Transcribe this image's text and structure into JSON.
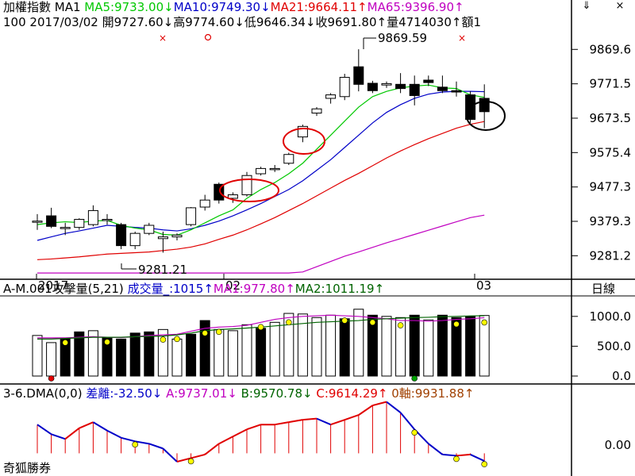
{
  "header": {
    "title": "加權指數 MA1",
    "ma5": "MA5:9733.00",
    "ma10": "MA10:9749.30",
    "ma21": "MA21:9664.11",
    "ma65": "MA65:9396.90",
    "info": "100 2017/03/02 開9727.60",
    "high": "高9774.60",
    "low": "低9646.34",
    "close": "收9691.80",
    "vol": "量4714030",
    "amt": "額1",
    "arrow_down": "↓",
    "arrow_up": "↑"
  },
  "vol_header": {
    "title": "A-M.001攻擊量(5,21)",
    "volume": "成交量_:1015",
    "ma1": "MA1:977.80",
    "ma2": "MA2:1011.19"
  },
  "dma_header": {
    "title": "3-6.DMA(0,0)",
    "diff": "差離:-32.50",
    "a": "A:9737.01",
    "b": "B:9570.78",
    "c": "C:9614.29",
    "zero": "0軸:9931.88"
  },
  "right_axis": {
    "ticks": [
      "9869.6",
      "9771.5",
      "9673.5",
      "9575.4",
      "9477.3",
      "9379.3",
      "9281.2"
    ],
    "period": "日線",
    "vol_ticks": [
      "1000.0",
      "500.0",
      "0.0"
    ],
    "dma_tick": "0.00"
  },
  "annotations": {
    "high_label": "9869.59",
    "low_label": "9281.21"
  },
  "x_axis": {
    "labels": [
      "2017",
      "02",
      "03"
    ]
  },
  "footer": {
    "brand": "奇狐勝券"
  },
  "window_icons": {
    "arrow": "⇓",
    "close": "×"
  },
  "colors": {
    "ma5": "#00c800",
    "ma10": "#0000c8",
    "ma21": "#e00000",
    "ma65": "#c000c0",
    "up": "#ffffff",
    "down": "#000000",
    "dma_up": "#e00000",
    "dma_down": "#0000c8"
  },
  "chart_data": [
    {
      "type": "candlestick",
      "title": "加權指數",
      "ylim": [
        9230,
        9920
      ],
      "candles": [
        {
          "o": 9380,
          "h": 9400,
          "l": 9355,
          "c": 9380
        },
        {
          "o": 9395,
          "h": 9418,
          "l": 9360,
          "c": 9365
        },
        {
          "o": 9360,
          "h": 9375,
          "l": 9340,
          "c": 9362
        },
        {
          "o": 9362,
          "h": 9388,
          "l": 9355,
          "c": 9385
        },
        {
          "o": 9370,
          "h": 9425,
          "l": 9365,
          "c": 9410
        },
        {
          "o": 9385,
          "h": 9400,
          "l": 9370,
          "c": 9385
        },
        {
          "o": 9370,
          "h": 9375,
          "l": 9300,
          "c": 9310
        },
        {
          "o": 9310,
          "h": 9350,
          "l": 9300,
          "c": 9345
        },
        {
          "o": 9345,
          "h": 9375,
          "l": 9340,
          "c": 9368
        },
        {
          "o": 9330,
          "h": 9350,
          "l": 9290,
          "c": 9335
        },
        {
          "o": 9335,
          "h": 9345,
          "l": 9325,
          "c": 9340
        },
        {
          "o": 9370,
          "h": 9420,
          "l": 9365,
          "c": 9418
        },
        {
          "o": 9420,
          "h": 9455,
          "l": 9410,
          "c": 9440
        },
        {
          "o": 9485,
          "h": 9490,
          "l": 9430,
          "c": 9440
        },
        {
          "o": 9445,
          "h": 9462,
          "l": 9432,
          "c": 9455
        },
        {
          "o": 9455,
          "h": 9520,
          "l": 9450,
          "c": 9510
        },
        {
          "o": 9515,
          "h": 9535,
          "l": 9510,
          "c": 9530
        },
        {
          "o": 9528,
          "h": 9540,
          "l": 9520,
          "c": 9530
        },
        {
          "o": 9545,
          "h": 9575,
          "l": 9540,
          "c": 9570
        },
        {
          "o": 9620,
          "h": 9655,
          "l": 9605,
          "c": 9650
        },
        {
          "o": 9688,
          "h": 9705,
          "l": 9680,
          "c": 9700
        },
        {
          "o": 9730,
          "h": 9745,
          "l": 9715,
          "c": 9740
        },
        {
          "o": 9735,
          "h": 9800,
          "l": 9725,
          "c": 9790
        },
        {
          "o": 9820,
          "h": 9870,
          "l": 9750,
          "c": 9770
        },
        {
          "o": 9773,
          "h": 9780,
          "l": 9745,
          "c": 9752
        },
        {
          "o": 9768,
          "h": 9778,
          "l": 9760,
          "c": 9772
        },
        {
          "o": 9770,
          "h": 9802,
          "l": 9745,
          "c": 9758
        },
        {
          "o": 9770,
          "h": 9795,
          "l": 9710,
          "c": 9738
        },
        {
          "o": 9782,
          "h": 9795,
          "l": 9765,
          "c": 9775
        },
        {
          "o": 9762,
          "h": 9795,
          "l": 9745,
          "c": 9752
        },
        {
          "o": 9752,
          "h": 9778,
          "l": 9735,
          "c": 9748
        },
        {
          "o": 9740,
          "h": 9750,
          "l": 9660,
          "c": 9670
        },
        {
          "o": 9730,
          "h": 9770,
          "l": 9645,
          "c": 9692
        }
      ],
      "ma5": [
        9370,
        9375,
        9378,
        9376,
        9380,
        9382,
        9368,
        9360,
        9355,
        9342,
        9340,
        9355,
        9375,
        9395,
        9412,
        9445,
        9470,
        9490,
        9515,
        9545,
        9585,
        9625,
        9665,
        9705,
        9735,
        9750,
        9760,
        9765,
        9768,
        9760,
        9758,
        9740,
        9733
      ],
      "ma10": [
        9325,
        9335,
        9345,
        9352,
        9360,
        9368,
        9365,
        9362,
        9360,
        9355,
        9352,
        9358,
        9368,
        9380,
        9395,
        9412,
        9430,
        9450,
        9470,
        9495,
        9525,
        9555,
        9590,
        9625,
        9660,
        9690,
        9712,
        9730,
        9742,
        9748,
        9750,
        9750,
        9749
      ],
      "ma21": [
        9270,
        9272,
        9275,
        9278,
        9282,
        9286,
        9288,
        9290,
        9292,
        9296,
        9300,
        9306,
        9315,
        9328,
        9340,
        9355,
        9372,
        9390,
        9410,
        9430,
        9452,
        9474,
        9496,
        9516,
        9538,
        9560,
        9580,
        9598,
        9615,
        9630,
        9645,
        9656,
        9664
      ],
      "ma65": [
        9030,
        9038,
        9046,
        9054,
        9062,
        9070,
        9078,
        9086,
        9094,
        9102,
        9110,
        9122,
        9135,
        9148,
        9162,
        9175,
        9190,
        9205,
        9220,
        9235,
        9250,
        9265,
        9280,
        9292,
        9305,
        9318,
        9330,
        9342,
        9354,
        9366,
        9378,
        9390,
        9397
      ]
    },
    {
      "type": "bar",
      "title": "A-M.001攻擊量(5,21)",
      "ylim": [
        0,
        1250
      ],
      "values": [
        680,
        560,
        620,
        740,
        760,
        640,
        620,
        720,
        740,
        780,
        620,
        700,
        930,
        780,
        760,
        860,
        800,
        900,
        1050,
        1040,
        980,
        1020,
        960,
        1120,
        1020,
        1000,
        980,
        1020,
        940,
        1020,
        980,
        1000,
        1015
      ],
      "down": [
        false,
        false,
        true,
        true,
        false,
        true,
        true,
        true,
        true,
        false,
        false,
        true,
        true,
        false,
        false,
        false,
        true,
        false,
        false,
        false,
        false,
        false,
        true,
        false,
        true,
        false,
        false,
        true,
        false,
        true,
        true,
        true,
        false
      ],
      "ma1": [
        640,
        640,
        640,
        650,
        660,
        650,
        645,
        660,
        680,
        690,
        700,
        750,
        800,
        820,
        830,
        850,
        900,
        950,
        980,
        1000,
        1010,
        1020,
        1010,
        1000,
        980,
        960,
        930,
        930,
        920,
        930,
        950,
        960,
        978
      ],
      "ma2": [
        620,
        620,
        630,
        640,
        650,
        650,
        650,
        660,
        665,
        670,
        690,
        720,
        760,
        780,
        790,
        805,
        820,
        840,
        860,
        880,
        900,
        910,
        920,
        930,
        950,
        960,
        970,
        980,
        985,
        995,
        1000,
        1008,
        1011
      ]
    },
    {
      "type": "line",
      "title": "3-6.DMA(0,0)",
      "ylim": [
        -45,
        220
      ],
      "values": [
        120,
        80,
        60,
        105,
        130,
        95,
        65,
        50,
        40,
        20,
        -35,
        -20,
        -5,
        40,
        70,
        100,
        120,
        120,
        130,
        140,
        145,
        120,
        140,
        160,
        200,
        215,
        170,
        100,
        40,
        -5,
        -10,
        -5,
        -32
      ]
    }
  ]
}
